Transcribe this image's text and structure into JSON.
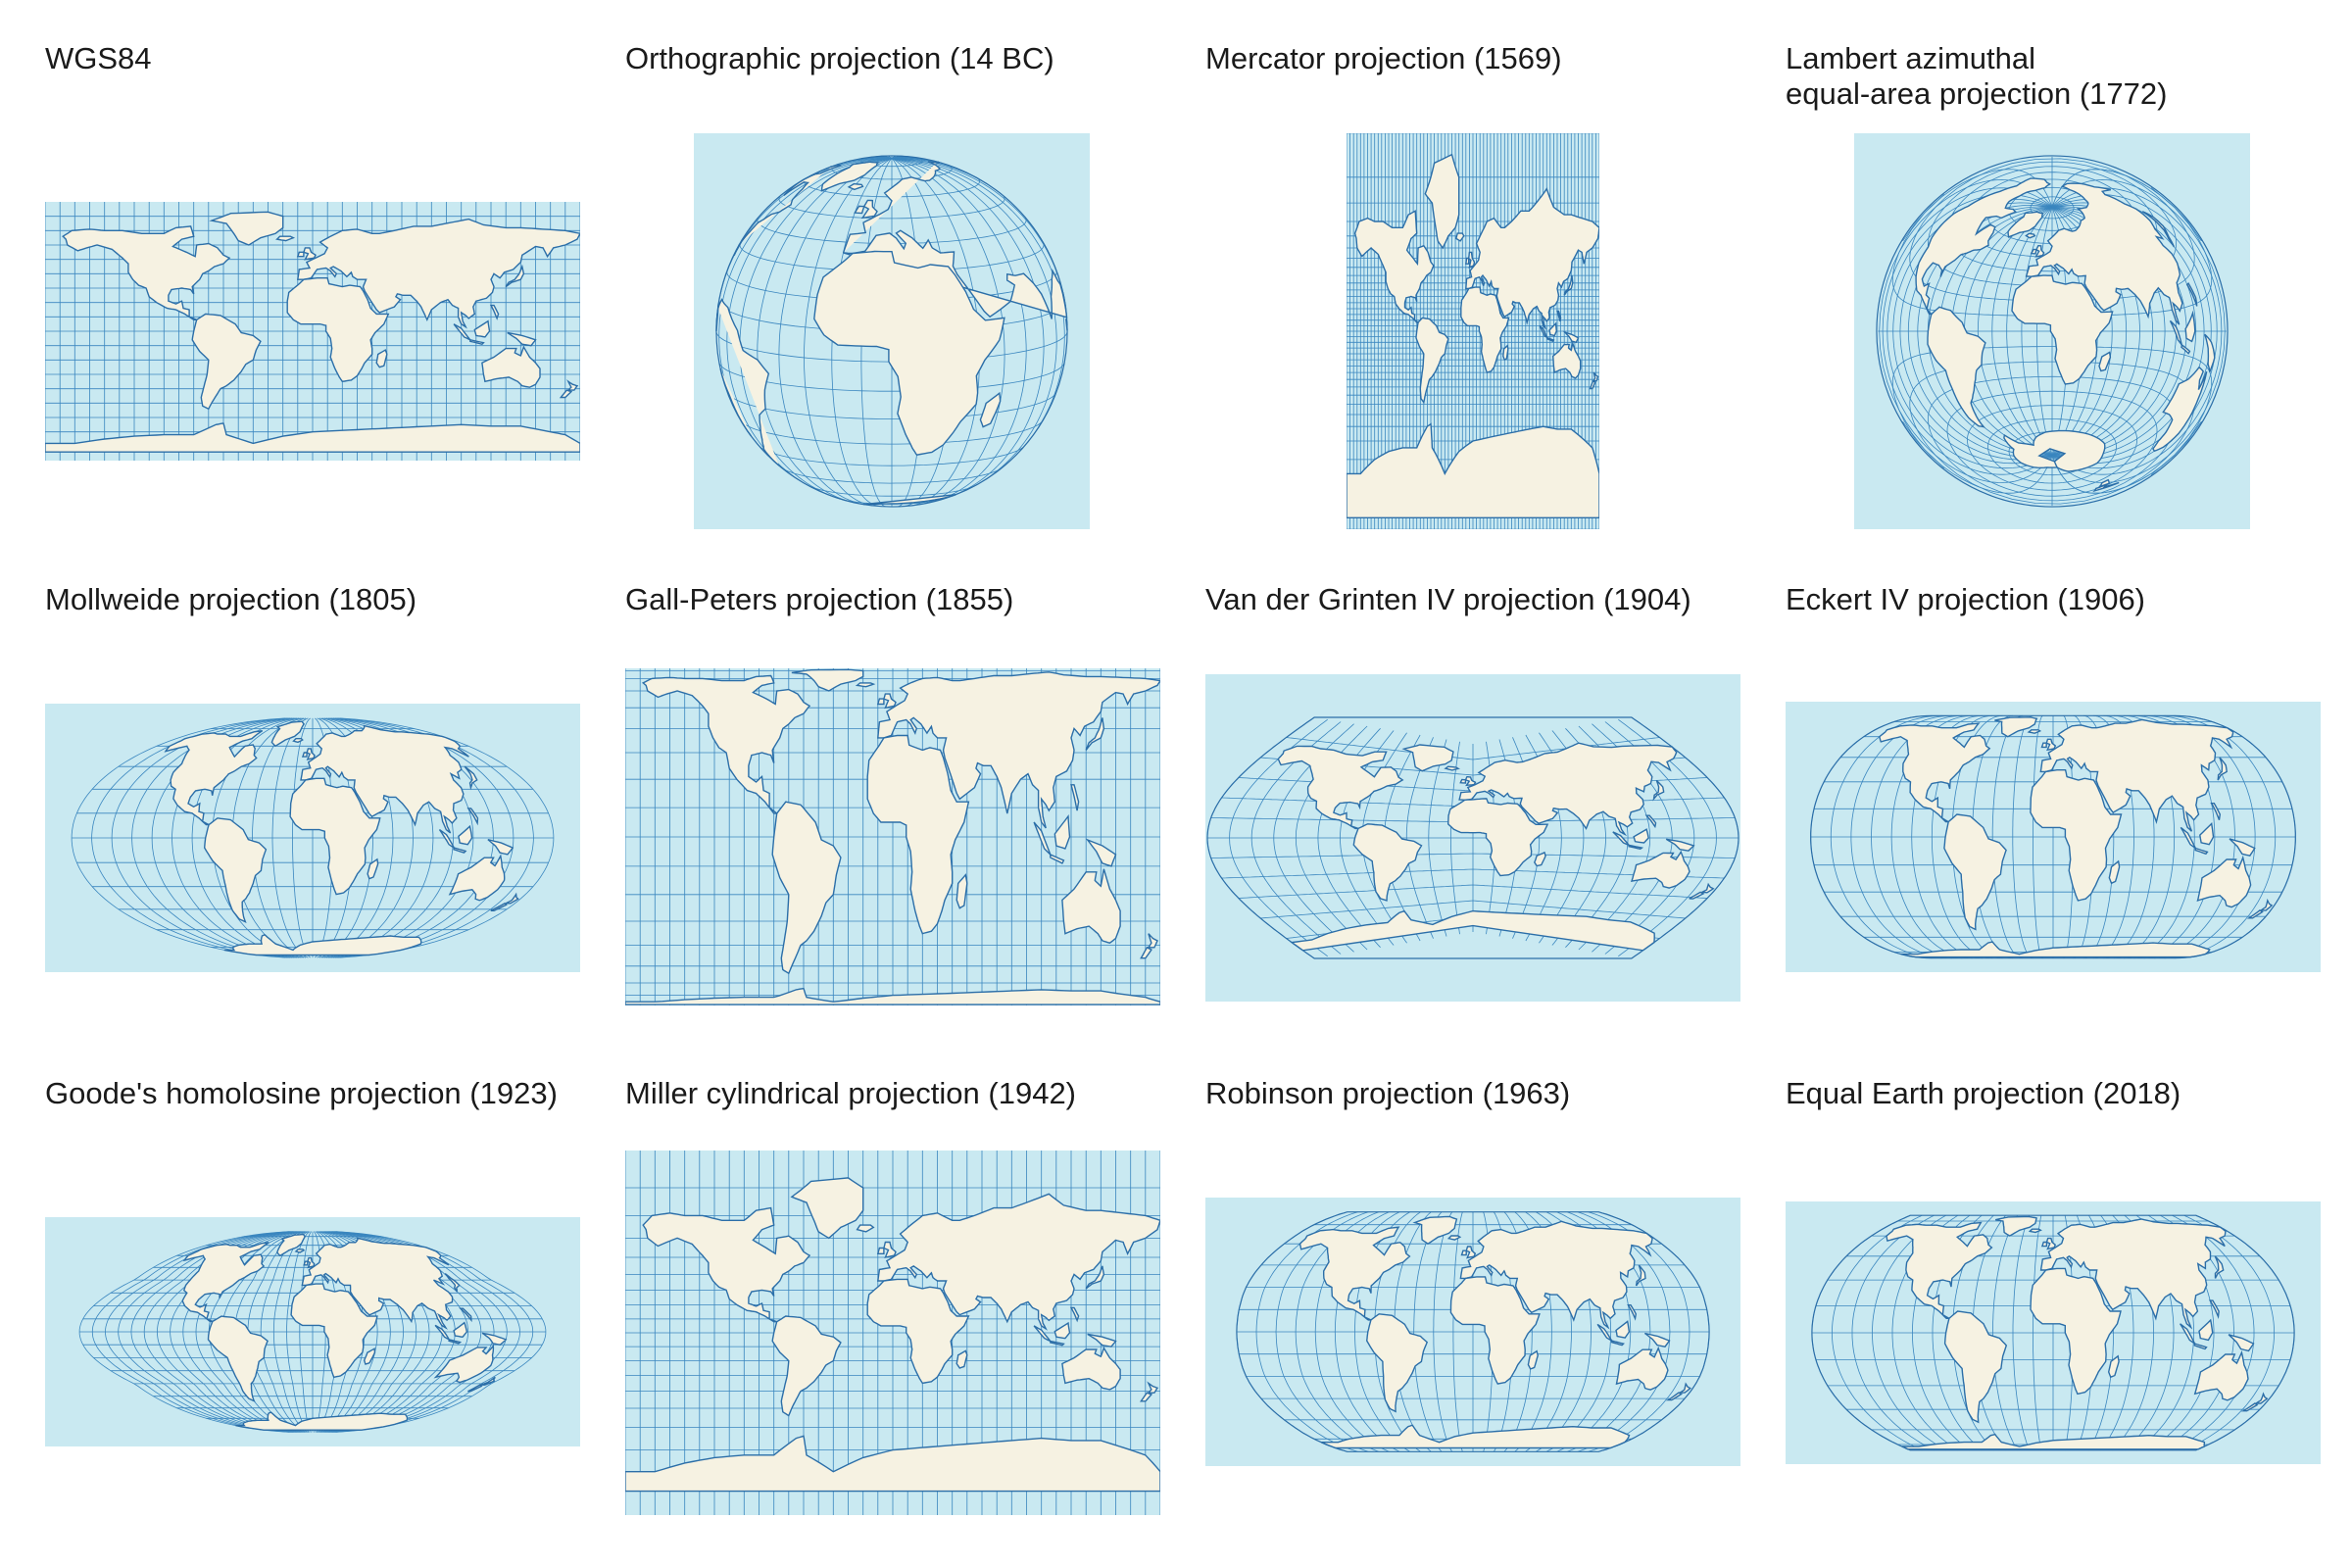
{
  "colors": {
    "ocean": "#c9e9f1",
    "land": "#f6f2e2",
    "line": "#2b6ea8"
  },
  "maps": [
    {
      "id": "wgs84",
      "title": "WGS84"
    },
    {
      "id": "orthographic",
      "title": "Orthographic projection (14 BC)"
    },
    {
      "id": "mercator",
      "title": "Mercator projection (1569)"
    },
    {
      "id": "lambert",
      "title": "Lambert azimuthal\nequal-area projection (1772)"
    },
    {
      "id": "mollweide",
      "title": "Mollweide projection (1805)"
    },
    {
      "id": "gallpeters",
      "title": "Gall-Peters projection (1855)"
    },
    {
      "id": "vandergrinten",
      "title": "Van der Grinten IV projection (1904)"
    },
    {
      "id": "eckert4",
      "title": "Eckert IV projection (1906)"
    },
    {
      "id": "goode",
      "title": "Goode's homolosine projection (1923)"
    },
    {
      "id": "miller",
      "title": "Miller cylindrical projection (1942)"
    },
    {
      "id": "robinson",
      "title": "Robinson projection (1963)"
    },
    {
      "id": "equalearth",
      "title": "Equal Earth projection (2018)"
    }
  ]
}
